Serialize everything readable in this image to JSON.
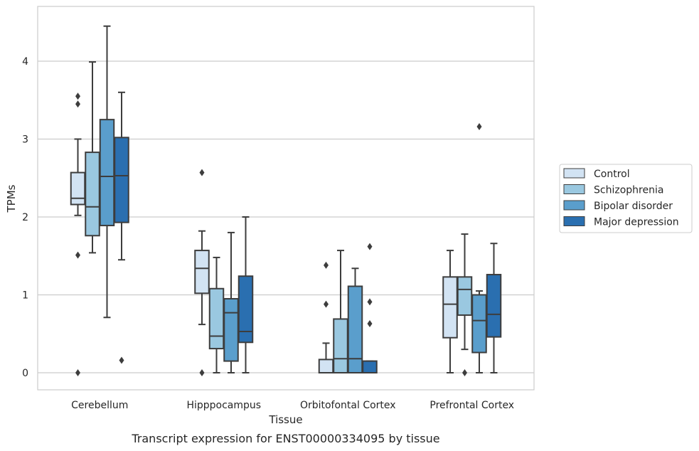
{
  "chart_data": {
    "type": "boxplot",
    "title": "Transcript expression for ENST00000334095 by tissue",
    "xlabel": "Tissue",
    "ylabel": "TPMs",
    "ylim": [
      -0.22,
      4.7
    ],
    "yticks": [
      0,
      1,
      2,
      3,
      4
    ],
    "categories": [
      "Cerebellum",
      "Hipppocampus",
      "Orbitofontal Cortex",
      "Prefrontal Cortex"
    ],
    "legend_position": "right",
    "grid": "horizontal",
    "series": [
      {
        "name": "Control",
        "color": "#d2e3f3",
        "boxes": [
          {
            "whisker_low": 2.02,
            "q1": 2.16,
            "median": 2.24,
            "q3": 2.57,
            "whisker_high": 3.0,
            "outliers": [
              3.55,
              3.45,
              1.51,
              0.0
            ]
          },
          {
            "whisker_low": 0.62,
            "q1": 1.02,
            "median": 1.34,
            "q3": 1.57,
            "whisker_high": 1.82,
            "outliers": [
              2.57,
              0.0
            ]
          },
          {
            "whisker_low": 0.0,
            "q1": 0.0,
            "median": 0.0,
            "q3": 0.17,
            "whisker_high": 0.38,
            "outliers": [
              1.38,
              0.88
            ]
          },
          {
            "whisker_low": 0.0,
            "q1": 0.45,
            "median": 0.88,
            "q3": 1.23,
            "whisker_high": 1.57,
            "outliers": []
          }
        ]
      },
      {
        "name": "Schizophrenia",
        "color": "#9ac8e0",
        "boxes": [
          {
            "whisker_low": 1.54,
            "q1": 1.76,
            "median": 2.13,
            "q3": 2.83,
            "whisker_high": 3.99,
            "outliers": []
          },
          {
            "whisker_low": 0.0,
            "q1": 0.31,
            "median": 0.47,
            "q3": 1.08,
            "whisker_high": 1.48,
            "outliers": []
          },
          {
            "whisker_low": 0.0,
            "q1": 0.0,
            "median": 0.18,
            "q3": 0.69,
            "whisker_high": 1.57,
            "outliers": []
          },
          {
            "whisker_low": 0.3,
            "q1": 0.74,
            "median": 1.07,
            "q3": 1.23,
            "whisker_high": 1.78,
            "outliers": [
              0.0
            ]
          }
        ]
      },
      {
        "name": "Bipolar disorder",
        "color": "#5a9ecc",
        "boxes": [
          {
            "whisker_low": 0.71,
            "q1": 1.89,
            "median": 2.52,
            "q3": 3.25,
            "whisker_high": 4.45,
            "outliers": []
          },
          {
            "whisker_low": 0.0,
            "q1": 0.15,
            "median": 0.77,
            "q3": 0.95,
            "whisker_high": 1.8,
            "outliers": []
          },
          {
            "whisker_low": 0.0,
            "q1": 0.0,
            "median": 0.18,
            "q3": 1.11,
            "whisker_high": 1.34,
            "outliers": []
          },
          {
            "whisker_low": 0.0,
            "q1": 0.26,
            "median": 0.67,
            "q3": 1.0,
            "whisker_high": 1.05,
            "outliers": [
              3.16
            ]
          }
        ]
      },
      {
        "name": "Major depression",
        "color": "#2a6fb0",
        "boxes": [
          {
            "whisker_low": 1.45,
            "q1": 1.93,
            "median": 2.53,
            "q3": 3.02,
            "whisker_high": 3.6,
            "outliers": [
              0.16
            ]
          },
          {
            "whisker_low": 0.0,
            "q1": 0.39,
            "median": 0.53,
            "q3": 1.24,
            "whisker_high": 2.0,
            "outliers": []
          },
          {
            "whisker_low": 0.0,
            "q1": 0.0,
            "median": 0.0,
            "q3": 0.15,
            "whisker_high": 0.15,
            "outliers": [
              1.62,
              0.91,
              0.63
            ]
          },
          {
            "whisker_low": 0.0,
            "q1": 0.46,
            "median": 0.75,
            "q3": 1.26,
            "whisker_high": 1.66,
            "outliers": []
          }
        ]
      }
    ]
  }
}
